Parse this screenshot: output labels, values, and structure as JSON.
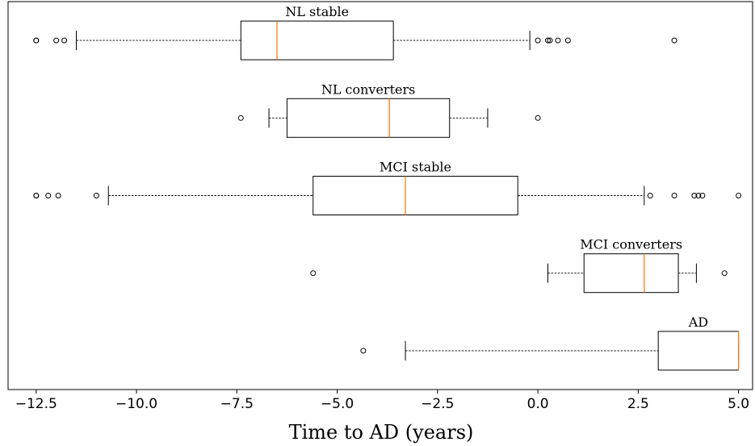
{
  "chart_data": {
    "type": "boxplot",
    "orientation": "horizontal",
    "xlabel": "Time to AD (years)",
    "xlim": [
      -13.2,
      5.35
    ],
    "xticks": [
      {
        "value": -12.5,
        "label": "−12.5"
      },
      {
        "value": -10.0,
        "label": "−10.0"
      },
      {
        "value": -7.5,
        "label": "−7.5"
      },
      {
        "value": -5.0,
        "label": "−5.0"
      },
      {
        "value": -2.5,
        "label": "−2.5"
      },
      {
        "value": 0.0,
        "label": "0.0"
      },
      {
        "value": 2.5,
        "label": "2.5"
      },
      {
        "value": 5.0,
        "label": "5.0"
      }
    ],
    "grid": false,
    "colors": {
      "box": "#000000",
      "median": "#ff7f0e"
    },
    "groups": [
      {
        "label": "NL stable",
        "whisker_low": -11.5,
        "q1": -7.4,
        "median": -6.5,
        "q3": -3.6,
        "whisker_high": -0.2,
        "fliers": [
          -12.5,
          -12.5,
          -12.0,
          -11.8,
          0.0,
          0.25,
          0.3,
          0.5,
          0.75,
          3.4
        ]
      },
      {
        "label": "NL converters",
        "whisker_low": -6.7,
        "q1": -6.25,
        "median": -3.7,
        "q3": -2.2,
        "whisker_high": -1.25,
        "fliers": [
          -7.4,
          0.0
        ]
      },
      {
        "label": "MCI stable",
        "whisker_low": -10.7,
        "q1": -5.6,
        "median": -3.3,
        "q3": -0.5,
        "whisker_high": 2.65,
        "fliers": [
          -12.5,
          -12.5,
          -12.2,
          -11.95,
          -11.0,
          2.8,
          3.4,
          3.9,
          4.0,
          4.1,
          5.0
        ]
      },
      {
        "label": "MCI converters",
        "whisker_low": 0.25,
        "q1": 1.15,
        "median": 2.65,
        "q3": 3.5,
        "whisker_high": 3.95,
        "fliers": [
          -5.6,
          4.65
        ]
      },
      {
        "label": "AD",
        "whisker_low": -3.3,
        "q1": 3.0,
        "median": 5.0,
        "q3": 5.0,
        "whisker_high": 5.0,
        "fliers": [
          -4.35
        ]
      }
    ]
  }
}
